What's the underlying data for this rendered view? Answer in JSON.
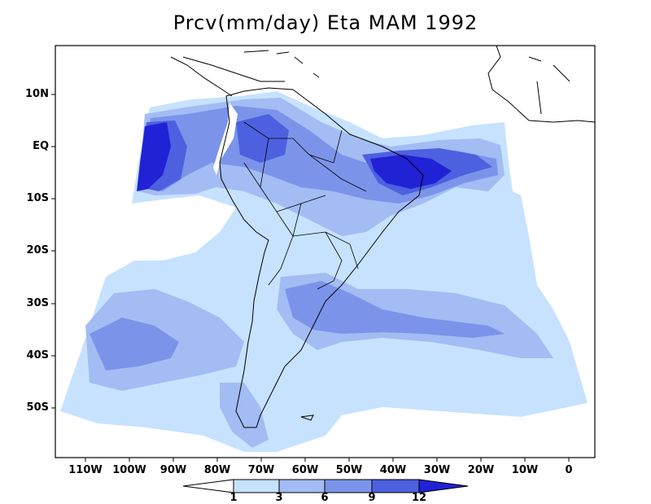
{
  "title": "Prcv(mm/day) Eta MAM 1992",
  "lat_labels": [
    "10N",
    "EQ",
    "10S",
    "20S",
    "30S",
    "40S",
    "50S"
  ],
  "lon_labels": [
    "110W",
    "100W",
    "90W",
    "80W",
    "70W",
    "60W",
    "50W",
    "40W",
    "30W",
    "20W",
    "10W",
    "0"
  ],
  "colorbar": {
    "levels": [
      "1",
      "3",
      "6",
      "9",
      "12"
    ],
    "colors": [
      "#ffffff",
      "#c6e2ff",
      "#a3bcf4",
      "#7b94ea",
      "#4d60e0",
      "#2121d6"
    ]
  },
  "palette": {
    "lt": "#c6e2ff",
    "md": "#a3bcf4",
    "dk": "#7b94ea",
    "vdk": "#4d60e0",
    "max": "#2121d6"
  }
}
